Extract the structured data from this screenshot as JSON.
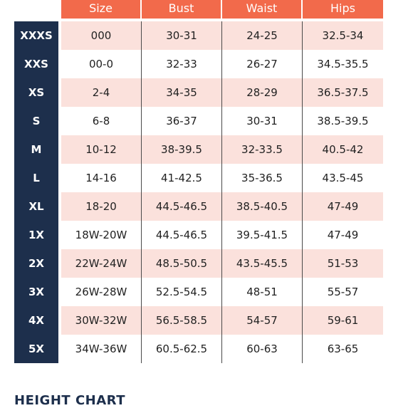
{
  "colors": {
    "header_bg": "#f26a4b",
    "label_bg": "#1d2f4c",
    "row_shade": "#fbe1dc"
  },
  "columns": [
    "Size",
    "Bust",
    "Waist",
    "Hips"
  ],
  "rows": [
    {
      "label": "XXXS",
      "values": [
        "000",
        "30-31",
        "24-25",
        "32.5-34"
      ]
    },
    {
      "label": "XXS",
      "values": [
        "00-0",
        "32-33",
        "26-27",
        "34.5-35.5"
      ]
    },
    {
      "label": "XS",
      "values": [
        "2-4",
        "34-35",
        "28-29",
        "36.5-37.5"
      ]
    },
    {
      "label": "S",
      "values": [
        "6-8",
        "36-37",
        "30-31",
        "38.5-39.5"
      ]
    },
    {
      "label": "M",
      "values": [
        "10-12",
        "38-39.5",
        "32-33.5",
        "40.5-42"
      ]
    },
    {
      "label": "L",
      "values": [
        "14-16",
        "41-42.5",
        "35-36.5",
        "43.5-45"
      ]
    },
    {
      "label": "XL",
      "values": [
        "18-20",
        "44.5-46.5",
        "38.5-40.5",
        "47-49"
      ]
    },
    {
      "label": "1X",
      "values": [
        "18W-20W",
        "44.5-46.5",
        "39.5-41.5",
        "47-49"
      ]
    },
    {
      "label": "2X",
      "values": [
        "22W-24W",
        "48.5-50.5",
        "43.5-45.5",
        "51-53"
      ]
    },
    {
      "label": "3X",
      "values": [
        "26W-28W",
        "52.5-54.5",
        "48-51",
        "55-57"
      ]
    },
    {
      "label": "4X",
      "values": [
        "30W-32W",
        "56.5-58.5",
        "54-57",
        "59-61"
      ]
    },
    {
      "label": "5X",
      "values": [
        "34W-36W",
        "60.5-62.5",
        "60-63",
        "63-65"
      ]
    }
  ],
  "section_title": "HEIGHT CHART"
}
